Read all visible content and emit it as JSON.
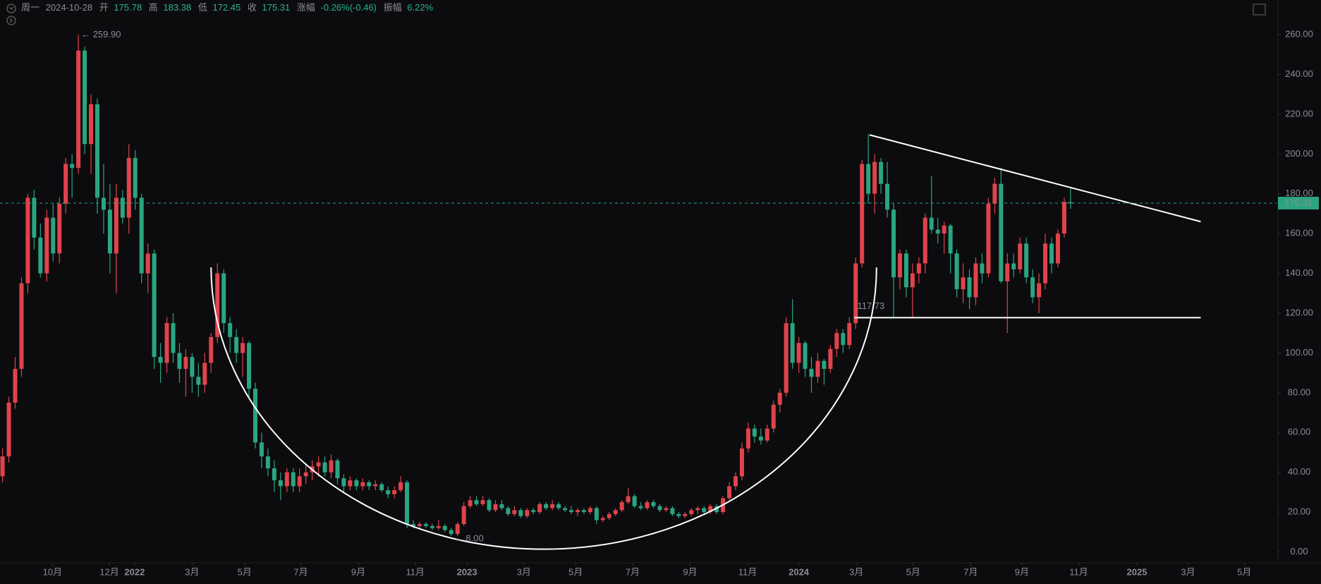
{
  "header": {
    "weekday": "周一",
    "date": "2024-10-28",
    "labels": [
      "开",
      "高",
      "低",
      "收",
      "涨幅",
      "振幅"
    ],
    "change": "-0.26%(-0.46)",
    "amplitude": "6.22%"
  },
  "chart_data": {
    "type": "candlestick",
    "up_color": "#e0434b",
    "down_color": "#2aa580",
    "xlim": [
      -0.4,
      201.6
    ],
    "ylim": [
      -5.5,
      277.4
    ],
    "yticks": [
      {
        "value": 0,
        "label": "0.00"
      },
      {
        "value": 20,
        "label": "20.00"
      },
      {
        "value": 40,
        "label": "40.00"
      },
      {
        "value": 60,
        "label": "60.00"
      },
      {
        "value": 80,
        "label": "80.00"
      },
      {
        "value": 100,
        "label": "100.00"
      },
      {
        "value": 120,
        "label": "120.00"
      },
      {
        "value": 140,
        "label": "140.00"
      },
      {
        "value": 160,
        "label": "160.00"
      },
      {
        "value": 180,
        "label": "180.00"
      },
      {
        "value": 200,
        "label": "200.00"
      },
      {
        "value": 220,
        "label": "220.00"
      },
      {
        "value": 240,
        "label": "240.00"
      },
      {
        "value": 260,
        "label": "260.00"
      }
    ],
    "xticks": [
      {
        "value": 7.9,
        "label": "10月"
      },
      {
        "value": 16.9,
        "label": "12月"
      },
      {
        "value": 20.9,
        "label": "2022"
      },
      {
        "value": 30,
        "label": "3月"
      },
      {
        "value": 38.3,
        "label": "5月"
      },
      {
        "value": 47.2,
        "label": "7月"
      },
      {
        "value": 56.3,
        "label": "9月"
      },
      {
        "value": 65.3,
        "label": "11月"
      },
      {
        "value": 73.5,
        "label": "2023"
      },
      {
        "value": 82.5,
        "label": "3月"
      },
      {
        "value": 90.7,
        "label": "5月"
      },
      {
        "value": 99.7,
        "label": "7月"
      },
      {
        "value": 108.8,
        "label": "9月"
      },
      {
        "value": 117.9,
        "label": "11月"
      },
      {
        "value": 126,
        "label": "2024"
      },
      {
        "value": 135.1,
        "label": "3月"
      },
      {
        "value": 144.1,
        "label": "5月"
      },
      {
        "value": 153.2,
        "label": "7月"
      },
      {
        "value": 161.3,
        "label": "9月"
      },
      {
        "value": 170.3,
        "label": "11月"
      },
      {
        "value": 179.5,
        "label": "2025"
      },
      {
        "value": 187.6,
        "label": "3月"
      },
      {
        "value": 196.5,
        "label": "5月"
      }
    ],
    "grid": false,
    "ohlc": [
      [
        38,
        52,
        35,
        48
      ],
      [
        48,
        78,
        45,
        75
      ],
      [
        75,
        98,
        72,
        92
      ],
      [
        92,
        138,
        88,
        135
      ],
      [
        135,
        180,
        130,
        178
      ],
      [
        178,
        182,
        152,
        158
      ],
      [
        158,
        165,
        138,
        140
      ],
      [
        140,
        172,
        136,
        168
      ],
      [
        168,
        175,
        146,
        150
      ],
      [
        150,
        178,
        145,
        175
      ],
      [
        175,
        198,
        170,
        195
      ],
      [
        195,
        200,
        178,
        193
      ],
      [
        193,
        259.9,
        190,
        252
      ],
      [
        252,
        254,
        200,
        205
      ],
      [
        205,
        230,
        190,
        225
      ],
      [
        225,
        228,
        170,
        178
      ],
      [
        178,
        195,
        160,
        172
      ],
      [
        172,
        185,
        140,
        150
      ],
      [
        150,
        185,
        130,
        178
      ],
      [
        178,
        182,
        165,
        168
      ],
      [
        168,
        205,
        160,
        198
      ],
      [
        198,
        202,
        172,
        178
      ],
      [
        178,
        180,
        135,
        140
      ],
      [
        140,
        155,
        130,
        150
      ],
      [
        150,
        152,
        92,
        98
      ],
      [
        98,
        105,
        85,
        95
      ],
      [
        95,
        118,
        90,
        115
      ],
      [
        115,
        120,
        95,
        100
      ],
      [
        100,
        105,
        85,
        92
      ],
      [
        92,
        102,
        78,
        98
      ],
      [
        98,
        100,
        80,
        88
      ],
      [
        88,
        95,
        78,
        84
      ],
      [
        84,
        100,
        80,
        95
      ],
      [
        95,
        110,
        90,
        108
      ],
      [
        108,
        145,
        105,
        140
      ],
      [
        140,
        142,
        110,
        115
      ],
      [
        115,
        118,
        100,
        108
      ],
      [
        108,
        112,
        95,
        100
      ],
      [
        100,
        108,
        88,
        105
      ],
      [
        105,
        106,
        78,
        82
      ],
      [
        82,
        85,
        52,
        55
      ],
      [
        55,
        60,
        42,
        48
      ],
      [
        48,
        52,
        38,
        42
      ],
      [
        42,
        46,
        30,
        36
      ],
      [
        36,
        40,
        26,
        33
      ],
      [
        33,
        42,
        30,
        40
      ],
      [
        40,
        42,
        30,
        33
      ],
      [
        33,
        42,
        30,
        38
      ],
      [
        38,
        44,
        34,
        40
      ],
      [
        40,
        46,
        36,
        43
      ],
      [
        43,
        48,
        38,
        45
      ],
      [
        45,
        48,
        38,
        40
      ],
      [
        40,
        49,
        37,
        46
      ],
      [
        46,
        47,
        34,
        37
      ],
      [
        37,
        39,
        30,
        33
      ],
      [
        33,
        38,
        31,
        36
      ],
      [
        36,
        37,
        31,
        33
      ],
      [
        33,
        37,
        31,
        35
      ],
      [
        35,
        36,
        31,
        33
      ],
      [
        33,
        36,
        31,
        34
      ],
      [
        34,
        35,
        30,
        31
      ],
      [
        31,
        33,
        27,
        29
      ],
      [
        29,
        33,
        27,
        31
      ],
      [
        31,
        38,
        30,
        35
      ],
      [
        35,
        36,
        12,
        14
      ],
      [
        14,
        16,
        12,
        13
      ],
      [
        13,
        15,
        12,
        14
      ],
      [
        14,
        15,
        12,
        13
      ],
      [
        13,
        14,
        11,
        12
      ],
      [
        12,
        16,
        11,
        13
      ],
      [
        13,
        14,
        10,
        11
      ],
      [
        11,
        12,
        8,
        9
      ],
      [
        9,
        15,
        8,
        14
      ],
      [
        14,
        25,
        13,
        23
      ],
      [
        23,
        28,
        22,
        26
      ],
      [
        26,
        28,
        23,
        24
      ],
      [
        24,
        28,
        23,
        26
      ],
      [
        26,
        27,
        20,
        21
      ],
      [
        21,
        26,
        20,
        24
      ],
      [
        24,
        26,
        21,
        22
      ],
      [
        22,
        23,
        18,
        19
      ],
      [
        19,
        23,
        18,
        21
      ],
      [
        21,
        22,
        17,
        18
      ],
      [
        18,
        22,
        17,
        21
      ],
      [
        21,
        22,
        19,
        20
      ],
      [
        20,
        25,
        19,
        24
      ],
      [
        24,
        25,
        21,
        22
      ],
      [
        22,
        26,
        21,
        24
      ],
      [
        24,
        25,
        21,
        22
      ],
      [
        22,
        23,
        20,
        21
      ],
      [
        21,
        23,
        19,
        20
      ],
      [
        20,
        22,
        18,
        21
      ],
      [
        21,
        22,
        19,
        20
      ],
      [
        20,
        23,
        19,
        22
      ],
      [
        22,
        23,
        14,
        16
      ],
      [
        16,
        18,
        15,
        17
      ],
      [
        17,
        20,
        16,
        19
      ],
      [
        19,
        22,
        18,
        21
      ],
      [
        21,
        26,
        20,
        25
      ],
      [
        25,
        32,
        24,
        28
      ],
      [
        28,
        29,
        22,
        23
      ],
      [
        23,
        25,
        21,
        22
      ],
      [
        22,
        26,
        21,
        25
      ],
      [
        25,
        26,
        22,
        23
      ],
      [
        23,
        24,
        20,
        21
      ],
      [
        21,
        23,
        20,
        22
      ],
      [
        22,
        23,
        18,
        19
      ],
      [
        19,
        20,
        17,
        18
      ],
      [
        18,
        20,
        17,
        19
      ],
      [
        19,
        22,
        18,
        21
      ],
      [
        21,
        23,
        19,
        22
      ],
      [
        22,
        23,
        19,
        20
      ],
      [
        20,
        24,
        19,
        23
      ],
      [
        23,
        24,
        19,
        20
      ],
      [
        20,
        28,
        19,
        27
      ],
      [
        27,
        35,
        26,
        33
      ],
      [
        33,
        40,
        31,
        38
      ],
      [
        38,
        55,
        36,
        52
      ],
      [
        52,
        65,
        50,
        62
      ],
      [
        62,
        64,
        55,
        58
      ],
      [
        58,
        62,
        54,
        56
      ],
      [
        56,
        64,
        55,
        62
      ],
      [
        62,
        76,
        60,
        74
      ],
      [
        74,
        82,
        70,
        80
      ],
      [
        80,
        118,
        78,
        115
      ],
      [
        115,
        127,
        92,
        95
      ],
      [
        95,
        108,
        90,
        105
      ],
      [
        105,
        106,
        88,
        92
      ],
      [
        92,
        98,
        80,
        88
      ],
      [
        88,
        100,
        85,
        96
      ],
      [
        96,
        97,
        84,
        92
      ],
      [
        92,
        104,
        90,
        102
      ],
      [
        102,
        112,
        98,
        110
      ],
      [
        110,
        112,
        100,
        104
      ],
      [
        104,
        118,
        102,
        115
      ],
      [
        115,
        148,
        112,
        145
      ],
      [
        145,
        197,
        143,
        195
      ],
      [
        195,
        210,
        175,
        180
      ],
      [
        180,
        200,
        170,
        196
      ],
      [
        196,
        198,
        180,
        185
      ],
      [
        185,
        196,
        168,
        172
      ],
      [
        172,
        175,
        118,
        138
      ],
      [
        138,
        152,
        132,
        150
      ],
      [
        150,
        152,
        128,
        133
      ],
      [
        133,
        145,
        118,
        140
      ],
      [
        140,
        148,
        135,
        145
      ],
      [
        145,
        170,
        140,
        168
      ],
      [
        168,
        189,
        160,
        162
      ],
      [
        162,
        168,
        155,
        160
      ],
      [
        160,
        166,
        150,
        164
      ],
      [
        164,
        165,
        140,
        150
      ],
      [
        150,
        152,
        128,
        132
      ],
      [
        132,
        145,
        125,
        138
      ],
      [
        138,
        142,
        122,
        128
      ],
      [
        128,
        148,
        124,
        145
      ],
      [
        145,
        150,
        135,
        140
      ],
      [
        140,
        178,
        138,
        175
      ],
      [
        175,
        188,
        170,
        185
      ],
      [
        185,
        193,
        135,
        136
      ],
      [
        136,
        150,
        110,
        145
      ],
      [
        145,
        150,
        138,
        142
      ],
      [
        142,
        158,
        140,
        155
      ],
      [
        155,
        158,
        135,
        138
      ],
      [
        138,
        142,
        125,
        128
      ],
      [
        128,
        140,
        120,
        135
      ],
      [
        135,
        160,
        132,
        155
      ],
      [
        155,
        158,
        140,
        145
      ],
      [
        145,
        162,
        143,
        160
      ],
      [
        160,
        178,
        158,
        176
      ],
      [
        175.78,
        183.38,
        172.45,
        175.31
      ]
    ],
    "annotations": [
      {
        "text": "← 259.90",
        "candle": 12,
        "at": "high"
      },
      {
        "text": "← 8.00",
        "candle": 71,
        "at": "low"
      }
    ],
    "drawings": {
      "trendline": {
        "from": [
          137.2,
          209.6
        ],
        "to": [
          189.6,
          166
        ]
      },
      "support": {
        "from": 134.8,
        "to": 189.6,
        "price": 117.73
      },
      "arc": {
        "left": [
          33,
          143
        ],
        "bottom": [
          85.6,
          1.3
        ],
        "right": [
          138.3,
          143
        ]
      }
    }
  }
}
